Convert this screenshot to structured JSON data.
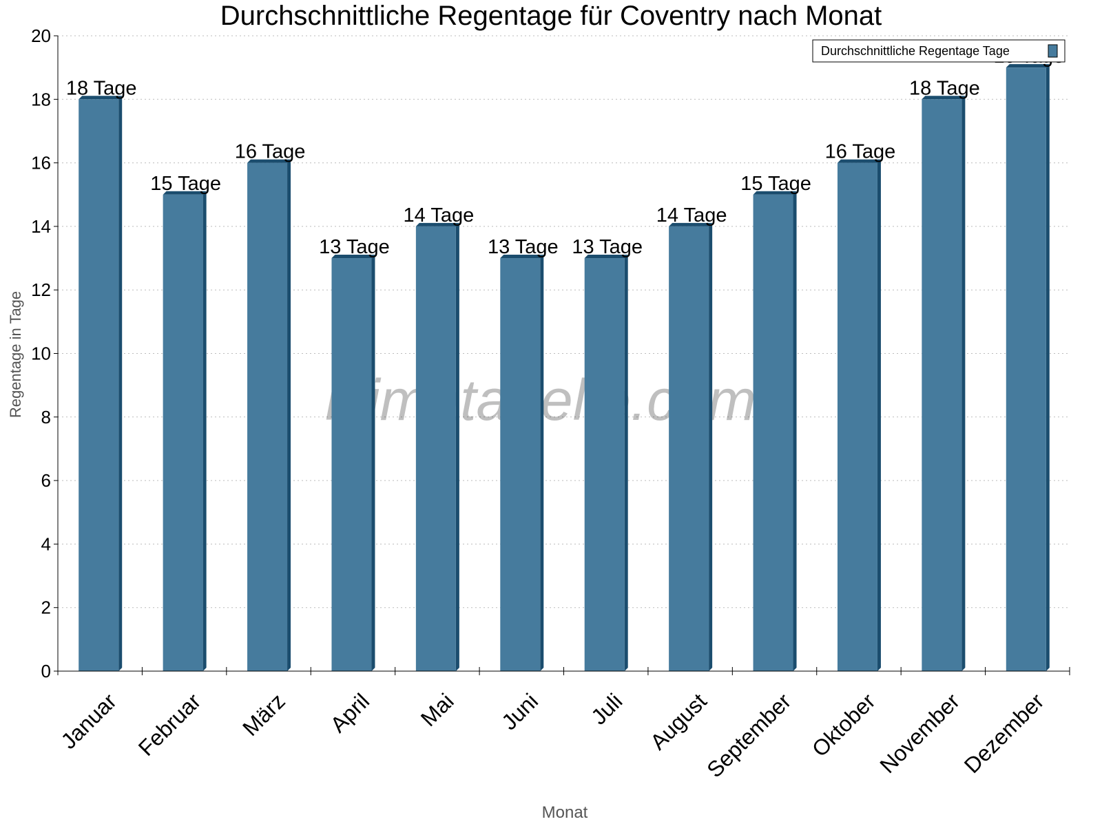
{
  "chart_data": {
    "type": "bar",
    "title": "Durchschnittliche Regentage für Coventry nach Monat",
    "xlabel": "Monat",
    "ylabel": "Regentage in Tage",
    "ylim": [
      0,
      20
    ],
    "yticks": [
      0,
      2,
      4,
      6,
      8,
      10,
      12,
      14,
      16,
      18,
      20
    ],
    "grid": true,
    "legend_position": "top-right",
    "categories": [
      "Januar",
      "Februar",
      "März",
      "April",
      "Mai",
      "Juni",
      "Juli",
      "August",
      "September",
      "Oktober",
      "November",
      "Dezember"
    ],
    "series": [
      {
        "name": "Durchschnittliche Regentage Tage",
        "values": [
          18,
          15,
          16,
          13,
          14,
          13,
          13,
          14,
          15,
          16,
          18,
          19
        ],
        "labels": [
          "18 Tage",
          "15 Tage",
          "16 Tage",
          "13 Tage",
          "14 Tage",
          "13 Tage",
          "13 Tage",
          "14 Tage",
          "15 Tage",
          "16 Tage",
          "18 Tage",
          "19 Tage"
        ]
      }
    ],
    "colors": {
      "bar": "#467b9d",
      "bar_side": "#1b4d6e"
    },
    "watermark": "klimatabelle.com"
  }
}
